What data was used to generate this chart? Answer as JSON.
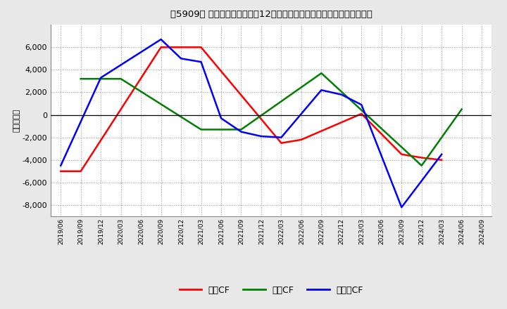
{
  "title_prefix": "[5909]",
  "ylabel": "（百万円）",
  "background_color": "#e8e8e8",
  "plot_bg_color": "#ffffff",
  "x_labels": [
    "2019/06",
    "2019/09",
    "2019/12",
    "2020/03",
    "2020/06",
    "2020/09",
    "2020/12",
    "2021/03",
    "2021/06",
    "2021/09",
    "2021/12",
    "2022/03",
    "2022/06",
    "2022/09",
    "2022/12",
    "2023/03",
    "2023/06",
    "2023/09",
    "2023/12",
    "2024/03",
    "2024/06",
    "2024/09"
  ],
  "operating_cf_x": [
    0,
    1,
    5,
    6,
    7,
    11,
    12,
    15,
    17,
    18,
    19
  ],
  "operating_cf_y": [
    -5000,
    -5000,
    6000,
    6000,
    6000,
    -2500,
    -2200,
    100,
    -3500,
    -3800,
    -4000
  ],
  "investing_cf_x": [
    1,
    2,
    3,
    7,
    8,
    9,
    13,
    18,
    20
  ],
  "investing_cf_y": [
    3200,
    3200,
    3200,
    -1300,
    -1300,
    -1300,
    3700,
    -4500,
    500
  ],
  "free_cf_x": [
    0,
    2,
    5,
    6,
    7,
    8,
    9,
    10,
    11,
    13,
    14,
    15,
    17,
    19
  ],
  "free_cf_y": [
    -4500,
    3300,
    6700,
    5000,
    4700,
    -300,
    -1500,
    -1900,
    -2000,
    2200,
    1800,
    900,
    -8200,
    -3500
  ],
  "series_colors": [
    "#ff0000",
    "#008000",
    "#0000ff"
  ],
  "series_labels": [
    "営業CF",
    "投資CF",
    "フリーCF"
  ],
  "ylim": [
    -9000,
    8000
  ],
  "yticks": [
    -8000,
    -6000,
    -4000,
    -2000,
    0,
    2000,
    4000,
    6000
  ]
}
